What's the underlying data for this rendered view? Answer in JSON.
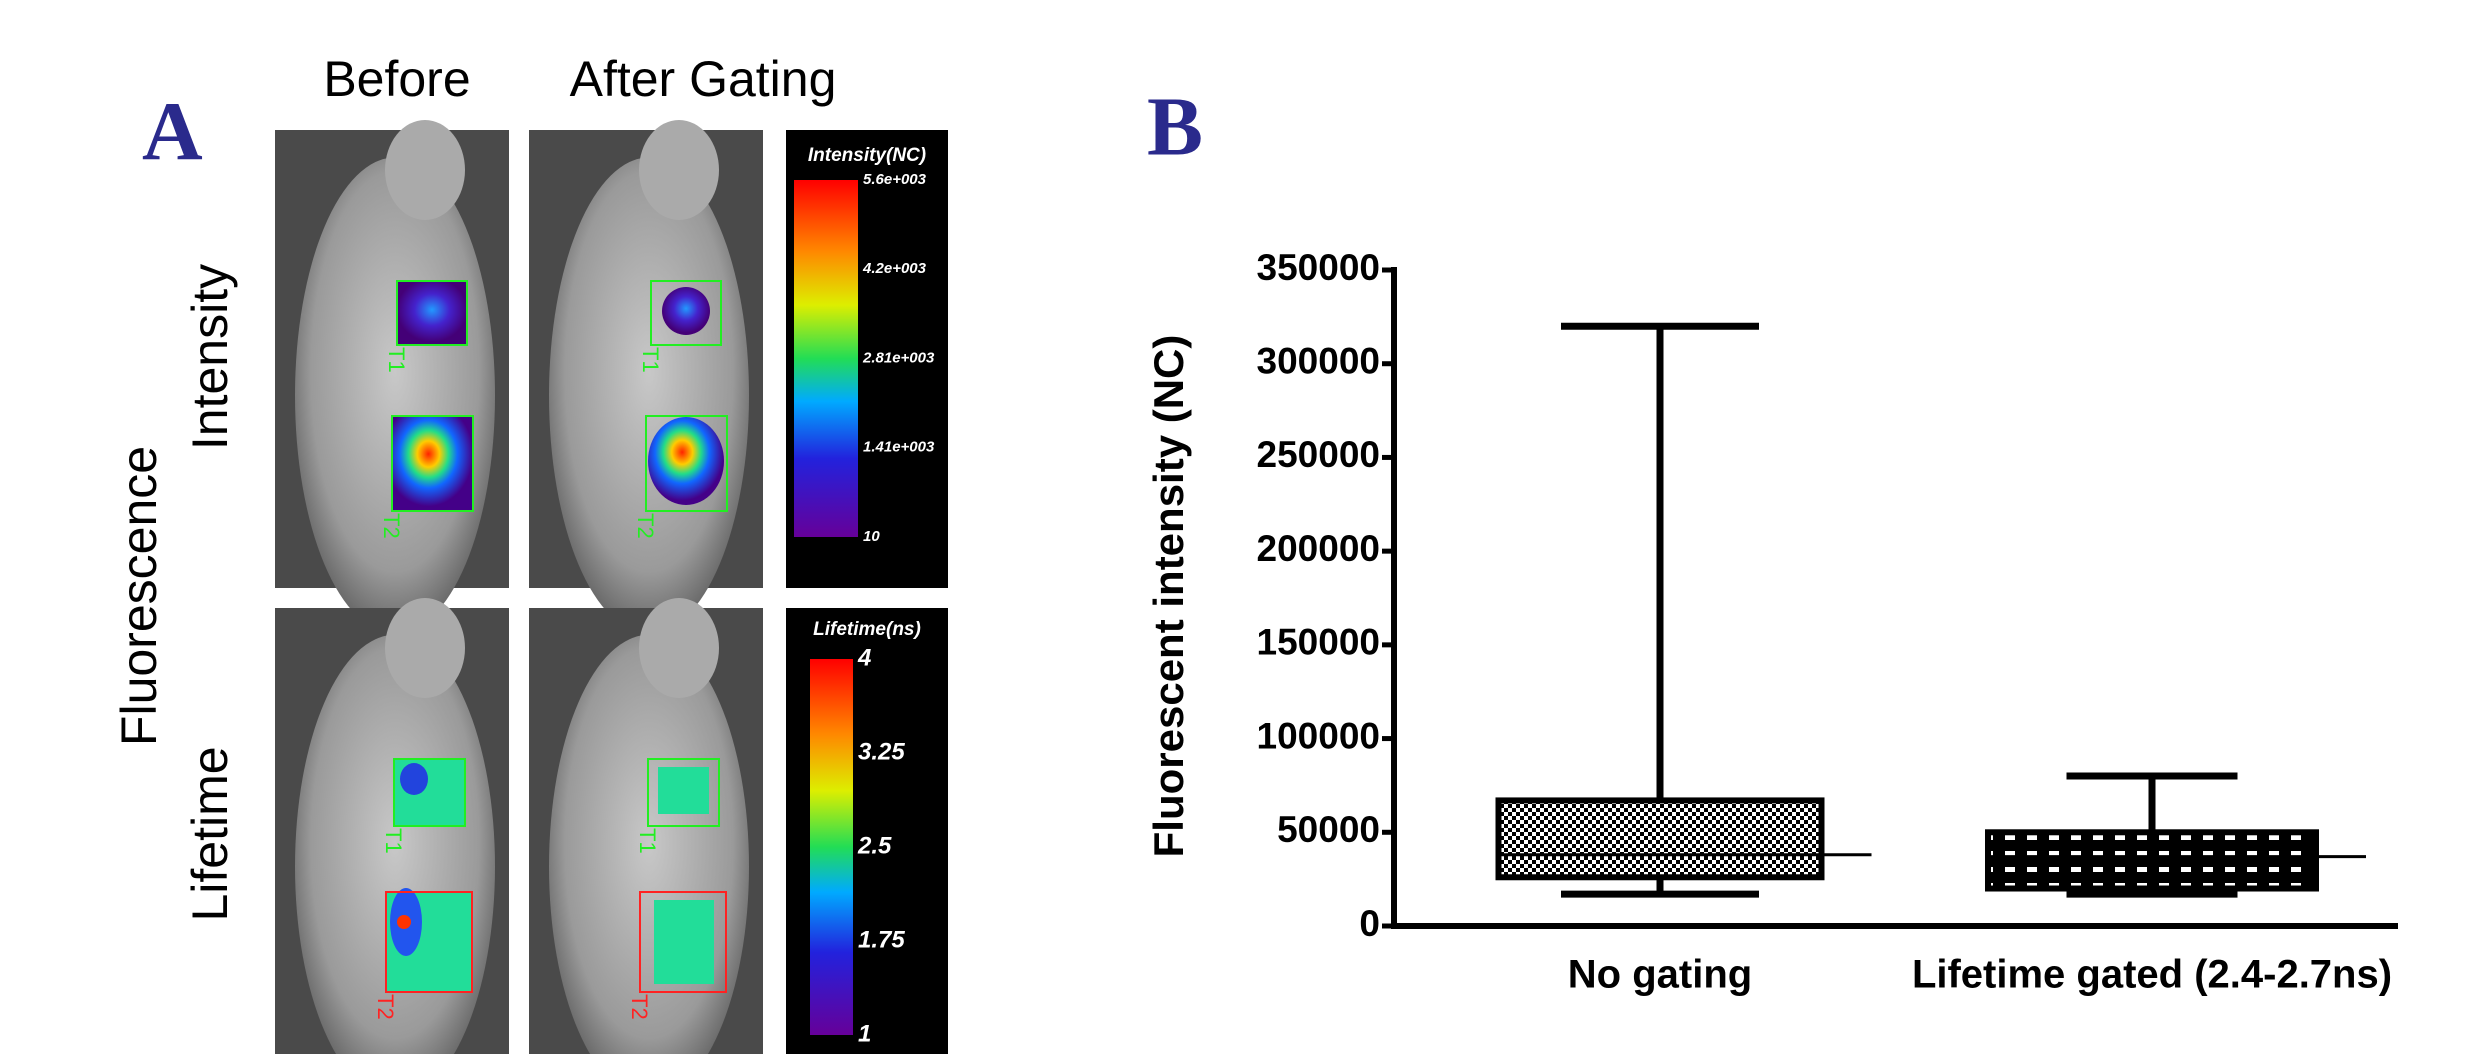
{
  "panel_a": {
    "label": "A",
    "columns": [
      "Before",
      "After Gating"
    ],
    "row_group": "Fluorescence",
    "rows": [
      "Intensity",
      "Lifetime"
    ],
    "roi_labels": [
      [
        "T1",
        "T2"
      ],
      [
        "T1",
        "T2"
      ],
      [
        "T1",
        "T2"
      ],
      [
        "T1",
        "T2"
      ]
    ],
    "intensity_bar": {
      "title": "Intensity(NC)",
      "labels": [
        "5.6e+003",
        "4.2e+003",
        "2.81e+003",
        "1.41e+003",
        "10"
      ]
    },
    "lifetime_bar": {
      "title": "Lifetime(ns)",
      "labels": [
        "4",
        "3.25",
        "2.5",
        "1.75",
        "1"
      ]
    }
  },
  "chart_data": {
    "type": "box",
    "panel_label": "B",
    "ylabel": "Fluorescent intensity (NC)",
    "categories": [
      "No gating",
      "Lifetime gated (2.4-2.7ns)"
    ],
    "min": [
      17000,
      17000
    ],
    "q1": [
      26000,
      20000
    ],
    "median": [
      38000,
      37000
    ],
    "q3": [
      67000,
      50000
    ],
    "max": [
      320000,
      80000
    ],
    "ylim": [
      0,
      350000
    ],
    "yticks": [
      0,
      50000,
      100000,
      150000,
      200000,
      250000,
      300000,
      350000
    ],
    "color": "#000000"
  }
}
